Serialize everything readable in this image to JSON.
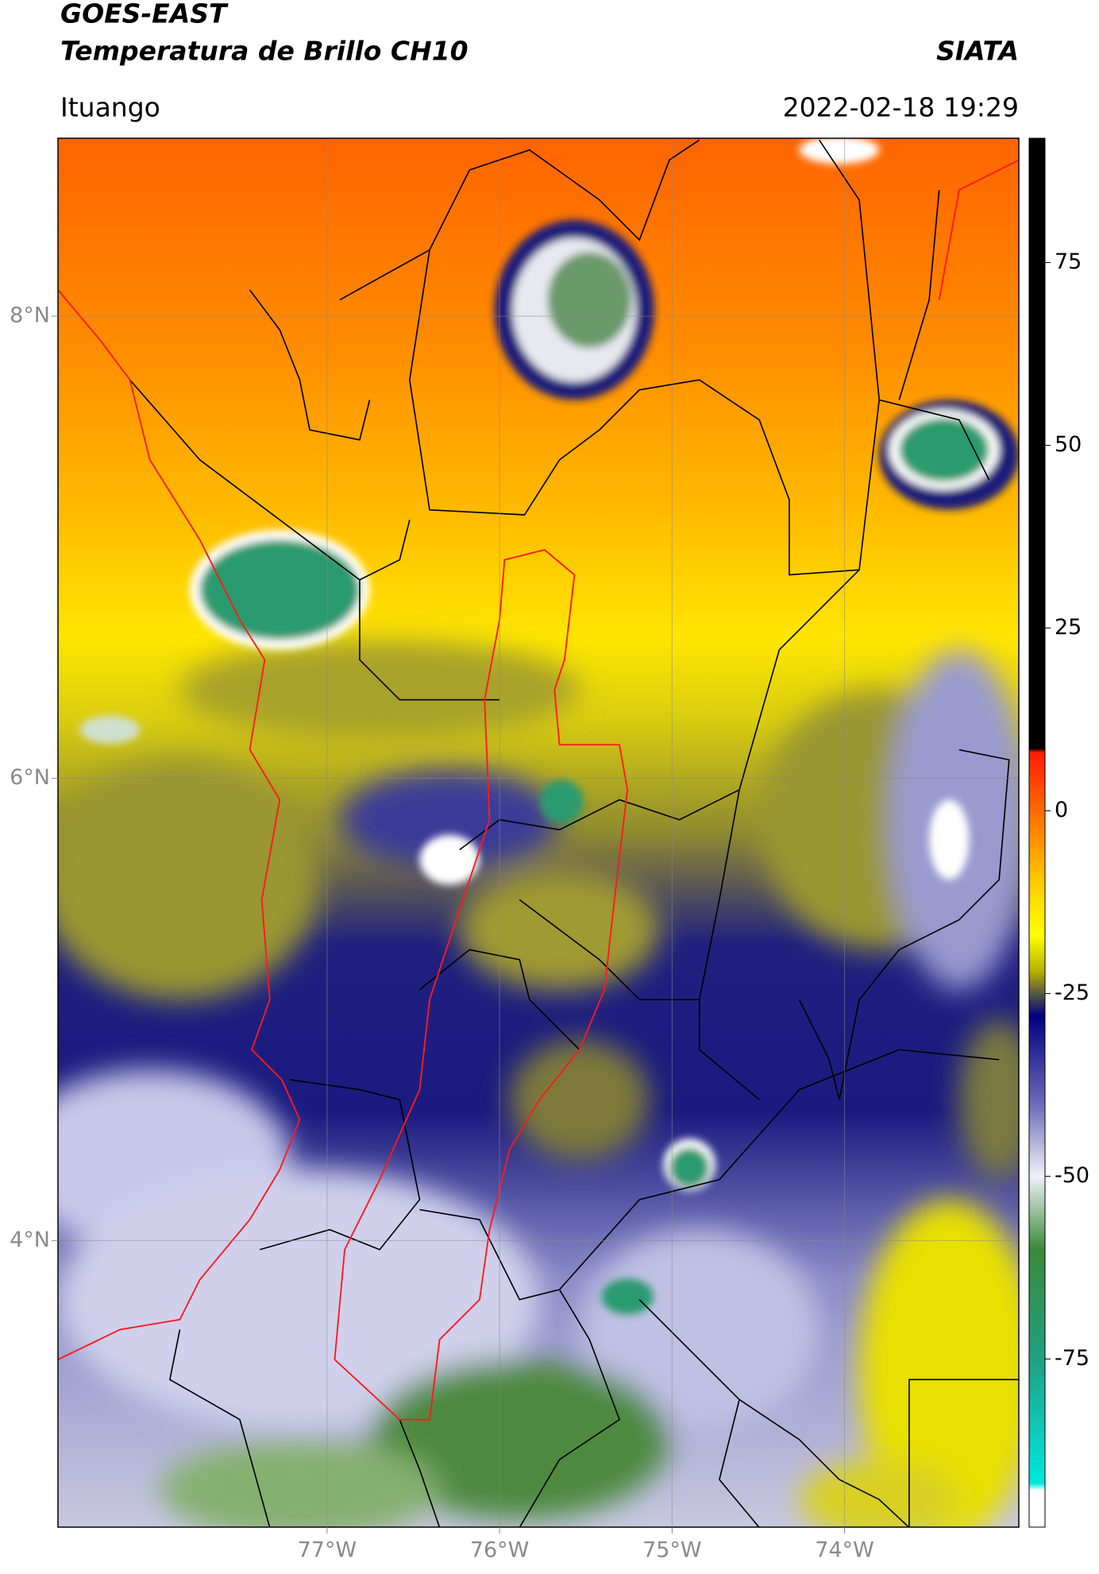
{
  "header": {
    "title": "GOES-EAST",
    "subtitle": "Temperatura de Brillo CH10",
    "source": "SIATA",
    "location": "Ituango",
    "datetime": "2022-02-18 19:29"
  },
  "map": {
    "xlim": [
      -78.56,
      -72.99
    ],
    "ylim": [
      2.76,
      8.77
    ],
    "xticks": [
      {
        "value": -77,
        "label": "77°W"
      },
      {
        "value": -76,
        "label": "76°W"
      },
      {
        "value": -75,
        "label": "75°W"
      },
      {
        "value": -74,
        "label": "74°W"
      }
    ],
    "yticks": [
      {
        "value": 8,
        "label": "8°N"
      },
      {
        "value": 6,
        "label": "6°N"
      },
      {
        "value": 4,
        "label": "4°N"
      }
    ],
    "grid": true
  },
  "colorbar": {
    "clim": [
      -98,
      92
    ],
    "ticks": [
      75,
      50,
      25,
      0,
      -25,
      -50,
      -75
    ],
    "colormap": [
      {
        "value": 92,
        "color": "#000000"
      },
      {
        "value": 8.5,
        "color": "#000000"
      },
      {
        "value": 8,
        "color": "#ff1a00"
      },
      {
        "value": 0,
        "color": "#ff6a00"
      },
      {
        "value": -10,
        "color": "#ffcc00"
      },
      {
        "value": -17,
        "color": "#ffff00"
      },
      {
        "value": -22,
        "color": "#b5b000"
      },
      {
        "value": -28,
        "color": "#000080"
      },
      {
        "value": -40,
        "color": "#6a6ab8"
      },
      {
        "value": -50,
        "color": "#f0f0f8"
      },
      {
        "value": -60,
        "color": "#3a8a3a"
      },
      {
        "value": -75,
        "color": "#20a080"
      },
      {
        "value": -92,
        "color": "#00e8e0"
      },
      {
        "value": -93,
        "color": "#ffffff"
      },
      {
        "value": -98,
        "color": "#ffffff"
      }
    ]
  }
}
